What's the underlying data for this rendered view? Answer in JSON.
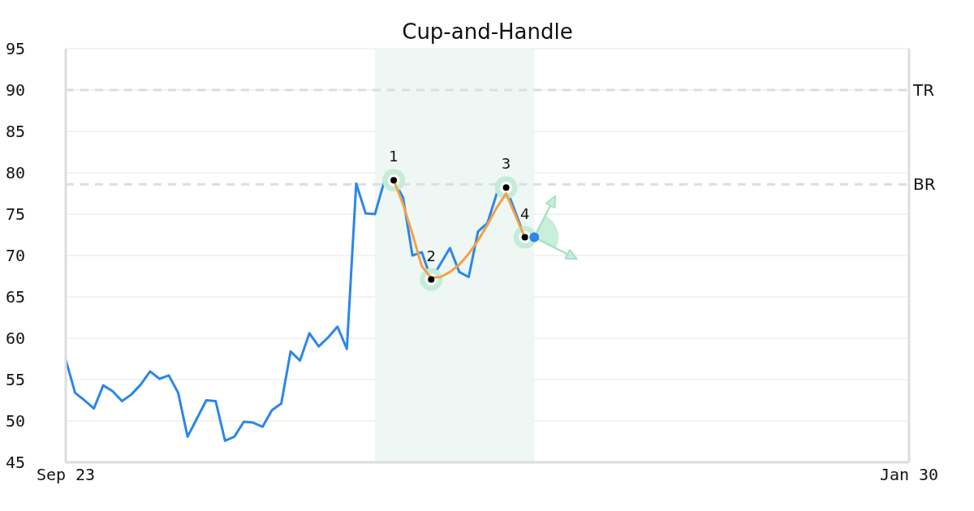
{
  "chart_data": {
    "type": "line",
    "title": "Cup-and-Handle",
    "categories": [
      "Sep 23",
      null,
      null,
      null,
      null,
      null,
      null,
      null,
      null,
      null,
      null,
      null,
      null,
      null,
      null,
      null,
      null,
      null,
      null,
      null,
      null,
      null,
      null,
      null,
      null,
      null,
      null,
      null,
      null,
      null,
      null,
      null,
      null,
      null,
      null,
      null,
      null,
      null,
      null,
      null,
      null,
      null,
      null,
      null,
      null,
      null,
      null,
      null,
      null,
      null,
      null,
      null,
      null,
      null,
      null,
      null,
      null,
      null,
      null,
      null,
      null,
      null,
      null,
      null,
      null,
      null,
      null,
      null,
      null,
      null,
      null,
      null,
      null,
      null,
      null,
      null,
      null,
      null,
      null,
      null,
      null,
      null,
      null,
      null,
      null,
      null,
      null,
      null,
      null,
      null,
      "Jan 30"
    ],
    "ylim": [
      45,
      95
    ],
    "yticks": [
      45,
      50,
      55,
      60,
      65,
      70,
      75,
      80,
      85,
      90,
      95
    ],
    "grid": "y",
    "ref_lines": [
      {
        "axis": "y",
        "value": 90,
        "label": "TR",
        "color": "#dddddd",
        "line_style": "dashed"
      },
      {
        "axis": "y",
        "value": 78.6,
        "label": "BR",
        "color": "#dddddd",
        "line_style": "dashed"
      }
    ],
    "series": [
      {
        "color": "#2b87e8",
        "values": [
          57.4,
          53.4,
          52.5,
          51.5,
          54.3,
          53.6,
          52.4,
          53.2,
          54.4,
          56.0,
          55.1,
          55.5,
          53.4,
          48.1,
          50.3,
          52.5,
          52.4,
          47.6,
          48.1,
          49.9,
          49.8,
          49.3,
          51.3,
          52.1,
          58.4,
          57.3,
          60.6,
          59.0,
          60.1,
          61.4,
          58.7,
          78.7,
          75.1,
          75.0,
          79.0,
          79.1,
          77.0,
          70.0,
          70.4,
          67.1,
          69.0,
          70.9,
          68.0,
          67.4,
          72.9,
          73.9,
          77.5,
          78.2,
          75.2,
          72.2,
          null,
          null,
          null,
          null,
          null,
          null,
          null,
          null,
          null,
          null,
          null,
          null,
          null,
          null,
          null,
          null,
          null,
          null,
          null,
          null,
          null,
          null,
          null,
          null,
          null,
          null,
          null,
          null,
          null,
          null,
          null,
          null,
          null,
          null,
          null,
          null,
          null,
          null,
          null,
          null,
          null
        ]
      },
      {
        "type": "line",
        "color": "#f5a04a",
        "values": [
          null,
          null,
          null,
          null,
          null,
          null,
          null,
          null,
          null,
          null,
          null,
          null,
          null,
          null,
          null,
          null,
          null,
          null,
          null,
          null,
          null,
          null,
          null,
          null,
          null,
          null,
          null,
          null,
          null,
          null,
          null,
          null,
          null,
          null,
          null,
          79.1,
          76.2,
          72.6,
          68.7,
          67.3,
          67.4,
          68.0,
          68.9,
          70.2,
          71.8,
          73.7,
          75.8,
          77.5,
          74.8,
          72.2,
          null,
          null,
          null,
          null,
          null,
          null,
          null,
          null,
          null,
          null,
          null,
          null,
          null,
          null,
          null,
          null,
          null,
          null,
          null,
          null,
          null,
          null,
          null,
          null,
          null,
          null,
          null,
          null,
          null,
          null,
          null,
          null,
          null,
          null,
          null,
          null,
          null,
          null,
          null,
          null,
          null
        ]
      },
      {
        "type": "scatter",
        "name": "1",
        "color": "#000000",
        "marker": "circle",
        "values": [
          null,
          null,
          null,
          null,
          null,
          null,
          null,
          null,
          null,
          null,
          null,
          null,
          null,
          null,
          null,
          null,
          null,
          null,
          null,
          null,
          null,
          null,
          null,
          null,
          null,
          null,
          null,
          null,
          null,
          null,
          null,
          null,
          null,
          null,
          null,
          79.1,
          null,
          null,
          null,
          null,
          null,
          null,
          null,
          null,
          null,
          null,
          null,
          null,
          null,
          null,
          null,
          null,
          null,
          null,
          null,
          null,
          null,
          null,
          null,
          null,
          null,
          null,
          null,
          null,
          null,
          null,
          null,
          null,
          null,
          null,
          null,
          null,
          null,
          null,
          null,
          null,
          null,
          null,
          null,
          null,
          null,
          null,
          null,
          null,
          null,
          null,
          null,
          null,
          null,
          null,
          null
        ]
      },
      {
        "type": "scatter",
        "name": "2",
        "color": "#000000",
        "marker": "circle",
        "values": [
          null,
          null,
          null,
          null,
          null,
          null,
          null,
          null,
          null,
          null,
          null,
          null,
          null,
          null,
          null,
          null,
          null,
          null,
          null,
          null,
          null,
          null,
          null,
          null,
          null,
          null,
          null,
          null,
          null,
          null,
          null,
          null,
          null,
          null,
          null,
          null,
          null,
          null,
          null,
          67.1,
          null,
          null,
          null,
          null,
          null,
          null,
          null,
          null,
          null,
          null,
          null,
          null,
          null,
          null,
          null,
          null,
          null,
          null,
          null,
          null,
          null,
          null,
          null,
          null,
          null,
          null,
          null,
          null,
          null,
          null,
          null,
          null,
          null,
          null,
          null,
          null,
          null,
          null,
          null,
          null,
          null,
          null,
          null,
          null,
          null,
          null,
          null,
          null,
          null,
          null,
          null
        ]
      },
      {
        "type": "scatter",
        "name": "3",
        "color": "#000000",
        "marker": "circle",
        "values": [
          null,
          null,
          null,
          null,
          null,
          null,
          null,
          null,
          null,
          null,
          null,
          null,
          null,
          null,
          null,
          null,
          null,
          null,
          null,
          null,
          null,
          null,
          null,
          null,
          null,
          null,
          null,
          null,
          null,
          null,
          null,
          null,
          null,
          null,
          null,
          null,
          null,
          null,
          null,
          null,
          null,
          null,
          null,
          null,
          null,
          null,
          null,
          78.2,
          null,
          null,
          null,
          null,
          null,
          null,
          null,
          null,
          null,
          null,
          null,
          null,
          null,
          null,
          null,
          null,
          null,
          null,
          null,
          null,
          null,
          null,
          null,
          null,
          null,
          null,
          null,
          null,
          null,
          null,
          null,
          null,
          null,
          null,
          null,
          null,
          null,
          null,
          null,
          null,
          null,
          null,
          null
        ]
      },
      {
        "type": "scatter",
        "name": "4",
        "color": "#000000",
        "marker": "circle",
        "values": [
          null,
          null,
          null,
          null,
          null,
          null,
          null,
          null,
          null,
          null,
          null,
          null,
          null,
          null,
          null,
          null,
          null,
          null,
          null,
          null,
          null,
          null,
          null,
          null,
          null,
          null,
          null,
          null,
          null,
          null,
          null,
          null,
          null,
          null,
          null,
          null,
          null,
          null,
          null,
          null,
          null,
          null,
          null,
          null,
          null,
          null,
          null,
          null,
          null,
          72.2,
          null,
          null,
          null,
          null,
          null,
          null,
          null,
          null,
          null,
          null,
          null,
          null,
          null,
          null,
          null,
          null,
          null,
          null,
          null,
          null,
          null,
          null,
          null,
          null,
          null,
          null,
          null,
          null,
          null,
          null,
          null,
          null,
          null,
          null,
          null,
          null,
          null,
          null,
          null,
          null,
          null
        ]
      },
      {
        "type": "scatter",
        "color": "#2b87e8",
        "marker": "circle",
        "values": [
          null,
          null,
          null,
          null,
          null,
          null,
          null,
          null,
          null,
          null,
          null,
          null,
          null,
          null,
          null,
          null,
          null,
          null,
          null,
          null,
          null,
          null,
          null,
          null,
          null,
          null,
          null,
          null,
          null,
          null,
          null,
          null,
          null,
          null,
          null,
          null,
          null,
          null,
          null,
          null,
          null,
          null,
          null,
          null,
          null,
          null,
          null,
          null,
          null,
          null,
          72.2,
          null,
          null,
          null,
          null,
          null,
          null,
          null,
          null,
          null,
          null,
          null,
          null,
          null,
          null,
          null,
          null,
          null,
          null,
          null,
          null,
          null,
          null,
          null,
          null,
          null,
          null,
          null,
          null,
          null,
          null,
          null,
          null,
          null,
          null,
          null,
          null,
          null,
          null,
          null,
          null
        ]
      }
    ]
  }
}
